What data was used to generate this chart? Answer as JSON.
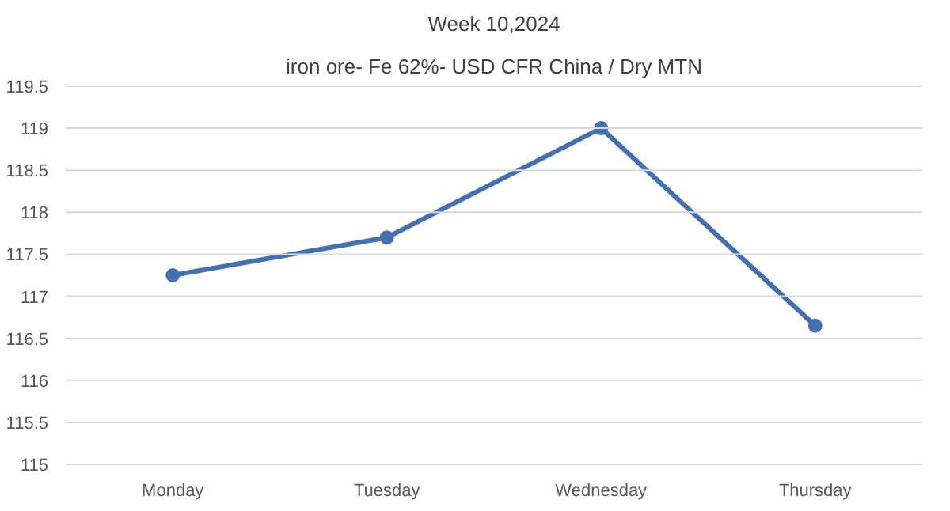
{
  "chart_data": {
    "type": "line",
    "title": "Week 10,2024",
    "subtitle": "iron ore- Fe 62%- USD CFR China / Dry MTN",
    "categories": [
      "Monday",
      "Tuesday",
      "Wednesday",
      "Thursday"
    ],
    "series": [
      {
        "color": "#4470b0",
        "values": [
          117.25,
          117.7,
          119,
          116.65
        ]
      }
    ],
    "ylim": [
      115,
      119.5
    ],
    "yticks": [
      115,
      115.5,
      116,
      116.5,
      117,
      117.5,
      118,
      118.5,
      119,
      119.5
    ],
    "grid": "y",
    "marker": "circle",
    "line_style": "solid"
  }
}
